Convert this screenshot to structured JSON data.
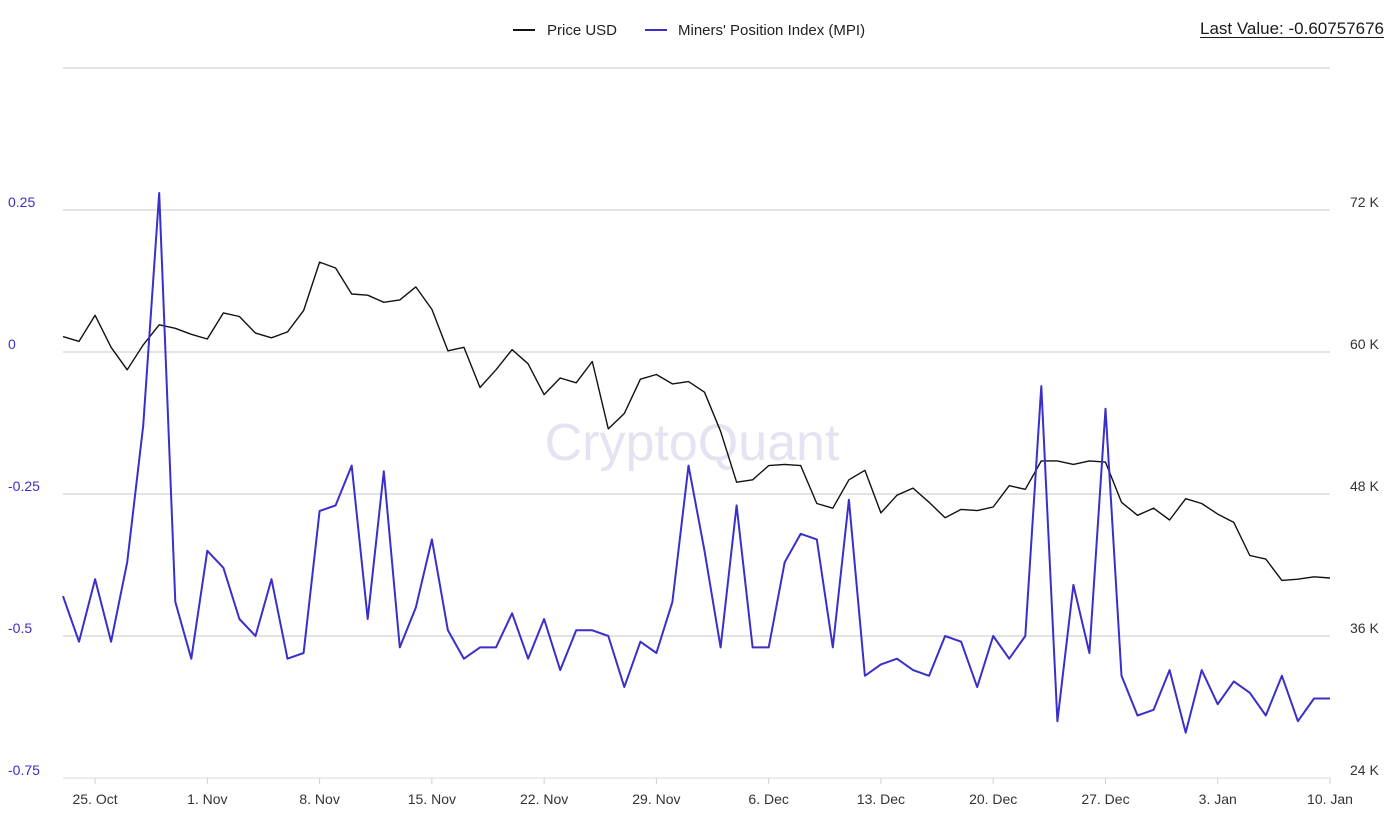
{
  "last_value": {
    "label": "Last Value:",
    "value": "-0.60757676"
  },
  "watermark": "CryptoQuant",
  "colors": {
    "price": "#111111",
    "mpi": "#3b2fc9",
    "grid": "#c8c8c8",
    "left_axis_text": "#3b2fc9",
    "right_axis_text": "#333333",
    "watermark": "#e3e3f1"
  },
  "chart_data": {
    "type": "line",
    "legend_position": "top-center",
    "grid": true,
    "x_tick_labels": [
      "25. Oct",
      "1. Nov",
      "8. Nov",
      "15. Nov",
      "22. Nov",
      "29. Nov",
      "6. Dec",
      "13. Dec",
      "20. Dec",
      "27. Dec",
      "3. Jan",
      "10. Jan"
    ],
    "x_start": "2021-10-23",
    "y_left": {
      "ticks": [
        0.25,
        0,
        -0.25,
        -0.5,
        -0.75
      ],
      "tick_labels": [
        "0.25",
        "0",
        "-0.25",
        "-0.5",
        "-0.75"
      ],
      "range": [
        -0.75,
        0.5
      ]
    },
    "y_right": {
      "ticks": [
        72000,
        60000,
        48000,
        36000,
        24000
      ],
      "tick_labels": [
        "72 K",
        "60 K",
        "48 K",
        "36 K",
        "24 K"
      ],
      "range": [
        24000,
        84000
      ]
    },
    "series": [
      {
        "name": "Price USD",
        "axis": "right",
        "values": [
          61300,
          60900,
          63100,
          60400,
          58500,
          60600,
          62300,
          62000,
          61500,
          61100,
          63300,
          63000,
          61600,
          61200,
          61700,
          63500,
          67600,
          67100,
          64900,
          64800,
          64200,
          64400,
          65500,
          63600,
          60100,
          60400,
          57000,
          58500,
          60200,
          59000,
          56400,
          57800,
          57400,
          59200,
          53500,
          54800,
          57700,
          58100,
          57300,
          57500,
          56600,
          53300,
          49000,
          49200,
          50400,
          50500,
          50400,
          47200,
          46800,
          49200,
          50000,
          46400,
          47900,
          48500,
          47300,
          46000,
          46700,
          46600,
          46900,
          48700,
          48400,
          50800,
          50800,
          50500,
          50800,
          50700,
          47300,
          46200,
          46800,
          45800,
          47600,
          47200,
          46300,
          45600,
          42800,
          42500,
          40700,
          40800,
          41000,
          40900
        ]
      },
      {
        "name": "Miners' Position Index (MPI)",
        "axis": "left",
        "values": [
          -0.43,
          -0.51,
          -0.4,
          -0.51,
          -0.37,
          -0.13,
          0.28,
          -0.44,
          -0.54,
          -0.35,
          -0.38,
          -0.47,
          -0.5,
          -0.4,
          -0.54,
          -0.53,
          -0.28,
          -0.27,
          -0.2,
          -0.47,
          -0.21,
          -0.52,
          -0.45,
          -0.33,
          -0.49,
          -0.54,
          -0.52,
          -0.52,
          -0.46,
          -0.54,
          -0.47,
          -0.56,
          -0.49,
          -0.49,
          -0.5,
          -0.59,
          -0.51,
          -0.53,
          -0.44,
          -0.2,
          -0.35,
          -0.52,
          -0.27,
          -0.52,
          -0.52,
          -0.37,
          -0.32,
          -0.33,
          -0.52,
          -0.26,
          -0.57,
          -0.55,
          -0.54,
          -0.56,
          -0.57,
          -0.5,
          -0.51,
          -0.59,
          -0.5,
          -0.54,
          -0.5,
          -0.06,
          -0.65,
          -0.41,
          -0.53,
          -0.1,
          -0.57,
          -0.64,
          -0.63,
          -0.56,
          -0.67,
          -0.56,
          -0.62,
          -0.58,
          -0.6,
          -0.64,
          -0.57,
          -0.65,
          -0.61,
          -0.61
        ]
      }
    ]
  }
}
